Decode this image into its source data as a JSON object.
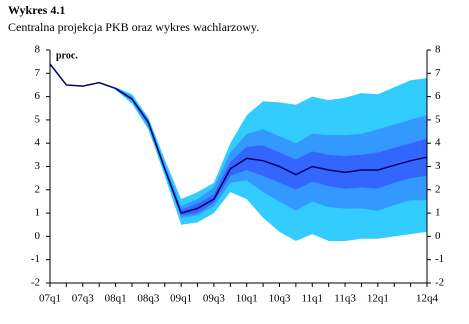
{
  "chart_data": {
    "type": "fan",
    "title": "Wykres 4.1",
    "subtitle": "Centralna projekcja PKB oraz wykres wachlarzowy.",
    "y_label": "proc.",
    "categories": [
      "07q1",
      null,
      "07q3",
      null,
      "08q1",
      null,
      "08q3",
      null,
      "09q1",
      null,
      "09q3",
      null,
      "10q1",
      null,
      "10q3",
      null,
      "11q1",
      null,
      "11q3",
      null,
      "12q1",
      null,
      null,
      "12q4"
    ],
    "ylim": [
      -2,
      8
    ],
    "yticks": [
      -2,
      -1,
      0,
      1,
      2,
      3,
      4,
      5,
      6,
      7,
      8
    ],
    "bands": [
      {
        "color": "#33ccff",
        "upper": [
          null,
          null,
          null,
          null,
          6.4,
          6.1,
          5.1,
          3.3,
          1.6,
          1.9,
          2.3,
          4.0,
          5.2,
          5.8,
          5.75,
          5.65,
          6.0,
          5.85,
          5.95,
          6.15,
          6.1,
          6.4,
          6.7,
          6.8
        ],
        "lower": [
          null,
          null,
          null,
          null,
          6.3,
          5.7,
          4.6,
          2.6,
          0.5,
          0.6,
          1.0,
          1.9,
          1.6,
          0.8,
          0.2,
          -0.2,
          0.1,
          -0.2,
          -0.2,
          -0.1,
          -0.1,
          0.0,
          0.1,
          0.2
        ]
      },
      {
        "color": "#3399ff",
        "upper": [
          null,
          null,
          null,
          null,
          6.4,
          6.0,
          5.0,
          3.1,
          1.3,
          1.6,
          2.1,
          3.6,
          4.4,
          4.6,
          4.3,
          4.0,
          4.4,
          4.35,
          4.35,
          4.4,
          4.6,
          4.8,
          5.0,
          5.2
        ],
        "lower": [
          null,
          null,
          null,
          null,
          6.3,
          5.8,
          4.7,
          2.8,
          0.8,
          0.9,
          1.3,
          2.3,
          2.4,
          1.9,
          1.5,
          1.1,
          1.5,
          1.25,
          1.2,
          1.2,
          1.1,
          1.35,
          1.55,
          1.55
        ]
      },
      {
        "color": "#3366ff",
        "upper": [
          null,
          null,
          null,
          null,
          6.35,
          5.95,
          4.95,
          3.0,
          1.15,
          1.4,
          1.8,
          3.2,
          3.85,
          3.9,
          3.6,
          3.3,
          3.65,
          3.5,
          3.45,
          3.5,
          3.6,
          3.8,
          4.0,
          4.2
        ],
        "lower": [
          null,
          null,
          null,
          null,
          6.3,
          5.85,
          4.8,
          2.85,
          0.9,
          1.0,
          1.45,
          2.6,
          2.85,
          2.6,
          2.3,
          2.0,
          2.35,
          2.15,
          2.05,
          2.1,
          2.05,
          2.3,
          2.5,
          2.6
        ]
      }
    ],
    "series": [
      {
        "color": "#000066",
        "values": [
          7.4,
          6.5,
          6.45,
          6.6,
          6.35,
          5.9,
          4.9,
          2.9,
          1.0,
          1.2,
          1.6,
          2.9,
          3.35,
          3.25,
          3.0,
          2.65,
          3.0,
          2.85,
          2.75,
          2.85,
          2.85,
          3.05,
          3.25,
          3.4
        ]
      }
    ]
  }
}
